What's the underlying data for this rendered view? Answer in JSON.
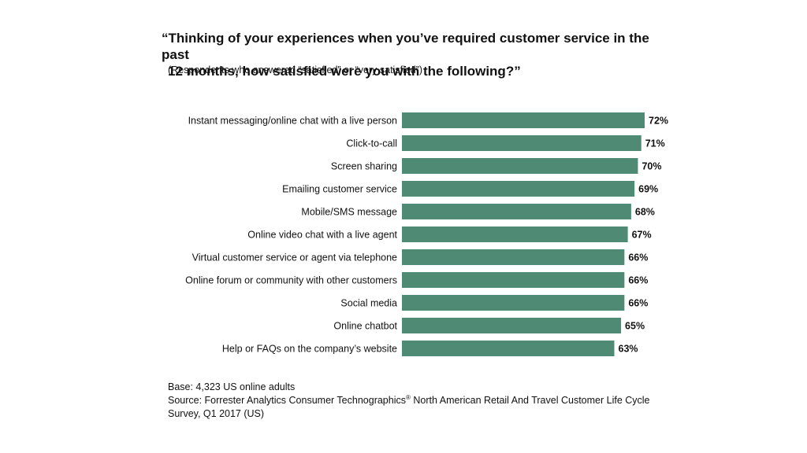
{
  "title": {
    "line1": "“Thinking of your experiences when you’ve required customer service in the past",
    "line2": "12 months, how satisfied were you with the following?”"
  },
  "subtitle": "(Respondents who answered “satisfied” or “very satisfied”)",
  "footer": {
    "base": "Base: 4,323 US online adults",
    "source_pre": "Source: Forrester Analytics Consumer Technographics",
    "source_mark": "®",
    "source_post": " North American Retail And Travel Customer Life Cycle Survey, Q1 2017 (US)"
  },
  "colors": {
    "bar": "#4e8a74",
    "text": "#111111"
  },
  "chart_data": {
    "type": "bar",
    "orientation": "horizontal",
    "categories": [
      "Instant messaging/online chat with a live person",
      "Click-to-call",
      "Screen sharing",
      "Emailing customer service",
      "Mobile/SMS message",
      "Online video chat with a live agent",
      "Virtual customer service or agent via telephone",
      "Online forum or community with other customers",
      "Social media",
      "Online chatbot",
      "Help or FAQs on the company’s website"
    ],
    "values": [
      72,
      71,
      70,
      69,
      68,
      67,
      66,
      66,
      66,
      65,
      63
    ],
    "labels": [
      "72%",
      "71%",
      "70%",
      "69%",
      "68%",
      "67%",
      "66%",
      "66%",
      "66%",
      "65%",
      "63%"
    ],
    "unit": "%",
    "xlim": [
      0,
      72
    ],
    "grid": false,
    "legend": false
  }
}
